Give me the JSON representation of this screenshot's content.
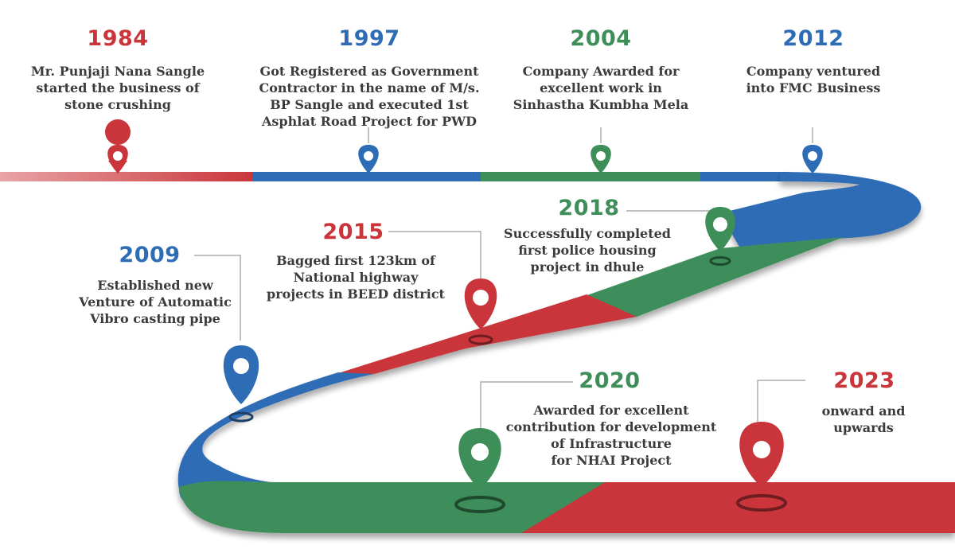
{
  "colors": {
    "red": "#c9353a",
    "blue": "#2e6db5",
    "green": "#3e8e5a",
    "text": "#3b3b3b"
  },
  "milestones": [
    {
      "year": "1984",
      "color": "red",
      "lines": [
        "Mr. Punjaji Nana Sangle",
        "started the business of",
        "stone crushing"
      ]
    },
    {
      "year": "1997",
      "color": "blue",
      "lines": [
        "Got Registered as Government",
        "Contractor in the name of M/s.",
        "BP Sangle and executed 1st",
        "Asphlat Road Project for PWD"
      ]
    },
    {
      "year": "2004",
      "color": "green",
      "lines": [
        "Company Awarded for",
        "excellent work in",
        "Sinhastha Kumbha Mela"
      ]
    },
    {
      "year": "2012",
      "color": "blue",
      "lines": [
        "Company ventured",
        "into FMC Business"
      ]
    },
    {
      "year": "2009",
      "color": "blue",
      "lines": [
        "Established new",
        "Venture of Automatic",
        "Vibro casting pipe"
      ]
    },
    {
      "year": "2015",
      "color": "red",
      "lines": [
        "Bagged first 123km of",
        "National highway",
        "projects in BEED district"
      ]
    },
    {
      "year": "2018",
      "color": "green",
      "lines": [
        "Successfully completed",
        "first police housing",
        "project in dhule"
      ]
    },
    {
      "year": "2020",
      "color": "green",
      "lines": [
        "Awarded for excellent",
        "contribution for development",
        "of Infrastructure",
        "for NHAI Project"
      ]
    },
    {
      "year": "2023",
      "color": "red",
      "lines": [
        "onward and",
        "upwards"
      ]
    }
  ]
}
